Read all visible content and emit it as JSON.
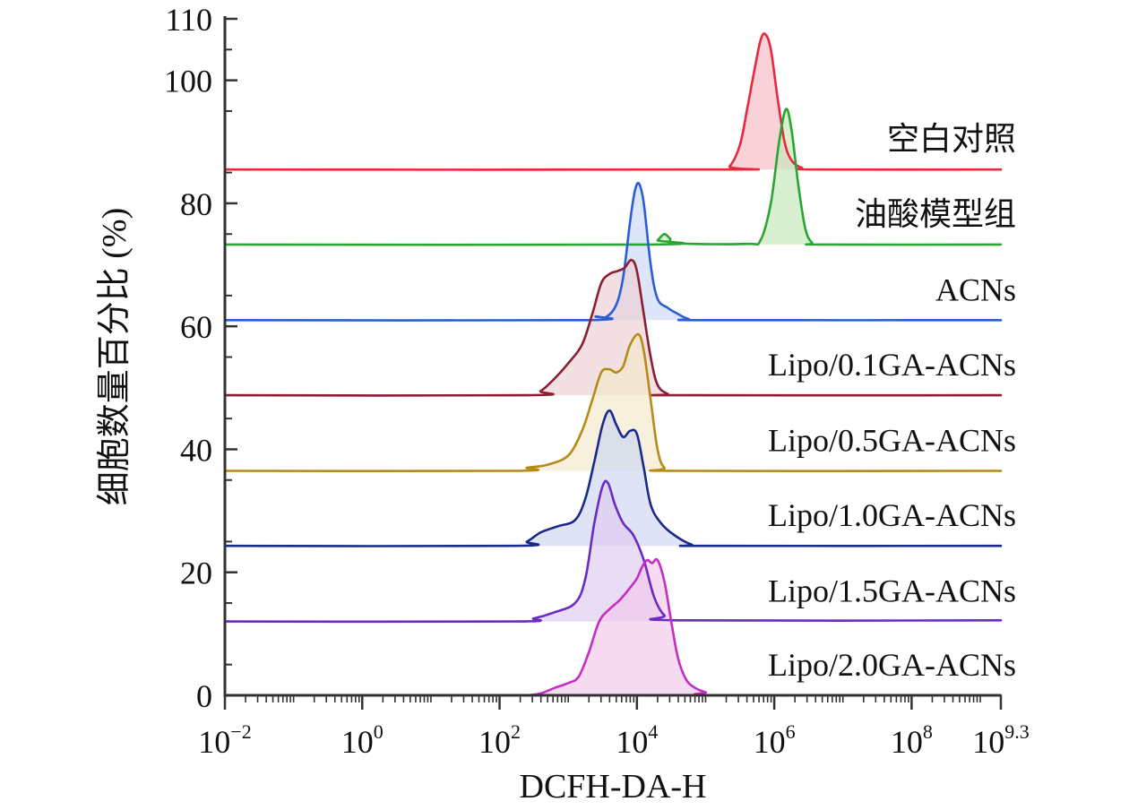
{
  "chart_data": {
    "type": "area",
    "title": "",
    "xlabel": "DCFH-DA-H",
    "ylabel": "细胞数量百分比 (%)",
    "x_scale": "log10",
    "xlim": [
      -2,
      9.3
    ],
    "ylim": [
      0,
      110
    ],
    "y_ticks": [
      {
        "value": 0,
        "label": "0"
      },
      {
        "value": 20,
        "label": "20"
      },
      {
        "value": 40,
        "label": "40"
      },
      {
        "value": 60,
        "label": "60"
      },
      {
        "value": 80,
        "label": "80"
      },
      {
        "value": 100,
        "label": "100"
      },
      {
        "value": 110,
        "label": "110"
      }
    ],
    "x_ticks": [
      {
        "exp": -2,
        "base": "10",
        "sup": "−2"
      },
      {
        "exp": 0,
        "base": "10",
        "sup": "0"
      },
      {
        "exp": 2,
        "base": "10",
        "sup": "2"
      },
      {
        "exp": 4,
        "base": "10",
        "sup": "4"
      },
      {
        "exp": 6,
        "base": "10",
        "sup": "6"
      },
      {
        "exp": 8,
        "base": "10",
        "sup": "8"
      },
      {
        "exp": 9.3,
        "base": "10",
        "sup": "9.3"
      }
    ],
    "grid": false,
    "legend": "labels above each curve, right",
    "series": [
      {
        "name": "空白对照",
        "color": "#e8283c",
        "fill": "#f4b8c4",
        "baseline": 85.5,
        "points": [
          [
            -2,
            85.5
          ],
          [
            5.2,
            85.5
          ],
          [
            5.35,
            86.0
          ],
          [
            5.5,
            89.5
          ],
          [
            5.6,
            95
          ],
          [
            5.7,
            101
          ],
          [
            5.8,
            106.5
          ],
          [
            5.87,
            107.5
          ],
          [
            5.95,
            105
          ],
          [
            6.05,
            97
          ],
          [
            6.15,
            90
          ],
          [
            6.25,
            87
          ],
          [
            6.4,
            85.8
          ],
          [
            6.6,
            85.5
          ],
          [
            9.3,
            85.5
          ]
        ]
      },
      {
        "name": "油酸模型组",
        "color": "#2aa531",
        "fill": "#c4e6b8",
        "baseline": 73.3,
        "points": [
          [
            -2,
            73.3
          ],
          [
            4.2,
            73.3
          ],
          [
            4.3,
            74.0
          ],
          [
            4.4,
            75.0
          ],
          [
            4.48,
            74.3
          ],
          [
            4.6,
            73.5
          ],
          [
            5.6,
            73.4
          ],
          [
            5.8,
            74.0
          ],
          [
            5.95,
            80
          ],
          [
            6.07,
            90
          ],
          [
            6.17,
            95.3
          ],
          [
            6.25,
            92
          ],
          [
            6.35,
            83
          ],
          [
            6.45,
            76
          ],
          [
            6.55,
            73.6
          ],
          [
            6.7,
            73.3
          ],
          [
            9.3,
            73.3
          ]
        ]
      },
      {
        "name": "ACNs",
        "color": "#2b5dd6",
        "fill": "#c9d8f4",
        "baseline": 61,
        "points": [
          [
            -2,
            61
          ],
          [
            3.2,
            61
          ],
          [
            3.4,
            61.6
          ],
          [
            3.55,
            61.5
          ],
          [
            3.7,
            63.5
          ],
          [
            3.8,
            68
          ],
          [
            3.9,
            77
          ],
          [
            3.97,
            82
          ],
          [
            4.03,
            83.2
          ],
          [
            4.1,
            80
          ],
          [
            4.2,
            70
          ],
          [
            4.3,
            64.5
          ],
          [
            4.45,
            63
          ],
          [
            4.6,
            62
          ],
          [
            4.75,
            61.2
          ],
          [
            5,
            61
          ],
          [
            9.3,
            61
          ]
        ]
      },
      {
        "name": "Lipo/0.1GA-ACNs",
        "color": "#8b1e32",
        "fill": "#ecd0d3",
        "baseline": 48.8,
        "points": [
          [
            -2,
            48.8
          ],
          [
            2.4,
            48.8
          ],
          [
            2.6,
            49.5
          ],
          [
            2.8,
            51.5
          ],
          [
            3.0,
            54
          ],
          [
            3.2,
            57
          ],
          [
            3.35,
            62
          ],
          [
            3.48,
            67
          ],
          [
            3.6,
            68.5
          ],
          [
            3.72,
            69
          ],
          [
            3.82,
            69.5
          ],
          [
            3.92,
            70.8
          ],
          [
            4.0,
            69
          ],
          [
            4.1,
            62
          ],
          [
            4.2,
            55
          ],
          [
            4.3,
            50.5
          ],
          [
            4.45,
            49
          ],
          [
            4.6,
            48.8
          ],
          [
            9.3,
            48.8
          ]
        ]
      },
      {
        "name": "Lipo/0.5GA-ACNs",
        "color": "#b78a18",
        "fill": "#f1e8c9",
        "baseline": 36.5,
        "points": [
          [
            -2,
            36.5
          ],
          [
            2.2,
            36.5
          ],
          [
            2.4,
            37.0
          ],
          [
            2.7,
            37.5
          ],
          [
            3.0,
            39
          ],
          [
            3.2,
            43
          ],
          [
            3.35,
            48
          ],
          [
            3.48,
            52.5
          ],
          [
            3.6,
            53
          ],
          [
            3.7,
            52.5
          ],
          [
            3.8,
            53.5
          ],
          [
            3.9,
            57
          ],
          [
            4.02,
            58.7
          ],
          [
            4.1,
            56
          ],
          [
            4.2,
            48
          ],
          [
            4.3,
            40
          ],
          [
            4.4,
            37
          ],
          [
            4.6,
            36.5
          ],
          [
            9.3,
            36.5
          ]
        ]
      },
      {
        "name": "Lipo/1.0GA-ACNs",
        "color": "#1a2a8a",
        "fill": "#cdd6f0",
        "baseline": 24.3,
        "points": [
          [
            -2,
            24.3
          ],
          [
            2.2,
            24.3
          ],
          [
            2.4,
            25
          ],
          [
            2.6,
            26.5
          ],
          [
            2.85,
            27.5
          ],
          [
            3.1,
            28.5
          ],
          [
            3.25,
            32
          ],
          [
            3.38,
            38
          ],
          [
            3.5,
            44
          ],
          [
            3.6,
            46.3
          ],
          [
            3.7,
            44
          ],
          [
            3.8,
            42
          ],
          [
            3.9,
            43
          ],
          [
            4.0,
            42.5
          ],
          [
            4.1,
            37
          ],
          [
            4.2,
            31
          ],
          [
            4.35,
            28
          ],
          [
            4.55,
            26
          ],
          [
            4.8,
            24.5
          ],
          [
            5.0,
            24.3
          ],
          [
            9.3,
            24.3
          ]
        ]
      },
      {
        "name": "Lipo/1.5GA-ACNs",
        "color": "#6a2bc4",
        "fill": "#ddc9f0",
        "baseline": 12,
        "points": [
          [
            -2,
            12
          ],
          [
            2.2,
            12
          ],
          [
            2.5,
            12.5
          ],
          [
            2.8,
            13.5
          ],
          [
            3.1,
            15
          ],
          [
            3.25,
            19
          ],
          [
            3.38,
            28
          ],
          [
            3.5,
            34
          ],
          [
            3.58,
            34.5
          ],
          [
            3.68,
            31
          ],
          [
            3.8,
            28
          ],
          [
            3.95,
            26
          ],
          [
            4.1,
            22
          ],
          [
            4.25,
            16
          ],
          [
            4.4,
            13
          ],
          [
            4.6,
            12.2
          ],
          [
            9.3,
            12.2
          ]
        ]
      },
      {
        "name": "Lipo/2.0GA-ACNs",
        "color": "#c42ec4",
        "fill": "#f2c8ea",
        "baseline": 0,
        "points": [
          [
            2.4,
            0
          ],
          [
            2.6,
            0.3
          ],
          [
            2.8,
            1.2
          ],
          [
            3.0,
            2
          ],
          [
            3.15,
            3
          ],
          [
            3.3,
            7
          ],
          [
            3.45,
            12
          ],
          [
            3.6,
            14
          ],
          [
            3.75,
            15.5
          ],
          [
            3.9,
            17.5
          ],
          [
            4.0,
            19
          ],
          [
            4.08,
            21
          ],
          [
            4.15,
            22
          ],
          [
            4.22,
            21.5
          ],
          [
            4.3,
            22
          ],
          [
            4.4,
            18.5
          ],
          [
            4.5,
            12
          ],
          [
            4.6,
            6
          ],
          [
            4.72,
            2.5
          ],
          [
            4.85,
            1.2
          ],
          [
            5.0,
            0.5
          ],
          [
            5.2,
            0
          ],
          [
            9.3,
            0
          ]
        ]
      }
    ]
  }
}
